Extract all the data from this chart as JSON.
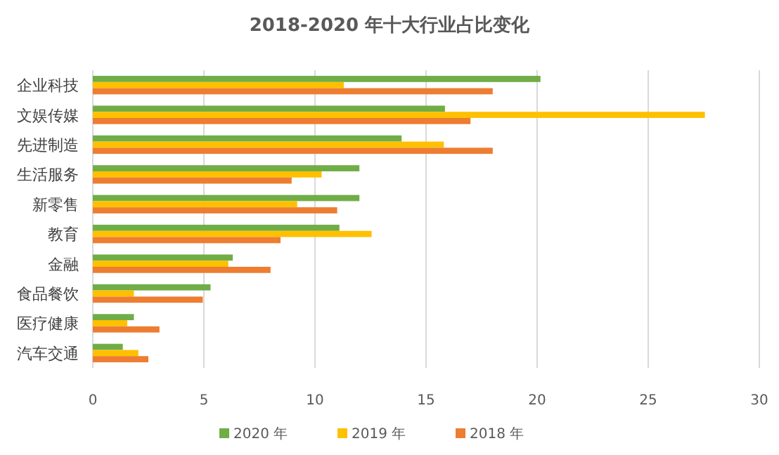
{
  "chart_data": {
    "type": "bar",
    "orientation": "horizontal",
    "title": "2018-2020 年十大行业占比变化",
    "categories": [
      "企业科技",
      "文娱传媒",
      "先进制造",
      "生活服务",
      "新零售",
      "教育",
      "金融",
      "食品餐饮",
      "医疗健康",
      "汽车交通"
    ],
    "series": [
      {
        "name": "2020 年",
        "color": "#70ad47",
        "values": [
          20.15,
          15.85,
          13.9,
          12.0,
          12.0,
          11.1,
          6.3,
          5.3,
          1.85,
          1.35
        ]
      },
      {
        "name": "2019 年",
        "color": "#ffc000",
        "values": [
          11.3,
          27.55,
          15.8,
          10.3,
          9.2,
          12.55,
          6.1,
          1.85,
          1.55,
          2.05
        ]
      },
      {
        "name": "2018 年",
        "color": "#ed7d31",
        "values": [
          18.0,
          17.0,
          18.0,
          8.95,
          11.0,
          8.45,
          8.0,
          4.95,
          3.0,
          2.5
        ]
      }
    ],
    "xlim": [
      0,
      30
    ],
    "xticks": [
      0,
      5,
      10,
      15,
      20,
      25,
      30
    ],
    "grid": "x",
    "legend": "bottom"
  }
}
